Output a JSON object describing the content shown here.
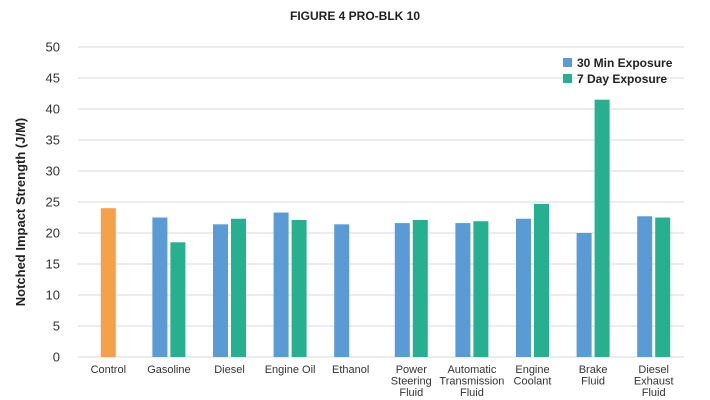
{
  "chart_data": {
    "type": "bar",
    "title": "FIGURE 4 PRO-BLK 10",
    "ylabel": "Notched Impact Strength (J/M)",
    "xlabel": "",
    "ylim": [
      0,
      50
    ],
    "yticks": [
      "0",
      "5",
      "10",
      "15",
      "20",
      "25",
      "30",
      "35",
      "40",
      "45",
      "50"
    ],
    "grid": true,
    "legend_position": "top-right",
    "categories": [
      [
        "Control"
      ],
      [
        "Gasoline"
      ],
      [
        "Diesel"
      ],
      [
        "Engine Oil"
      ],
      [
        "Ethanol"
      ],
      [
        "Power",
        "Steering",
        "Fluid"
      ],
      [
        "Automatic",
        "Transmission",
        "Fluid"
      ],
      [
        "Engine",
        "Coolant"
      ],
      [
        "Brake",
        "Fluid"
      ],
      [
        "Diesel",
        "Exhaust",
        "Fluid"
      ]
    ],
    "control": {
      "value": 24.0,
      "color": "#F5A04A"
    },
    "series": [
      {
        "name": "30 Min Exposure",
        "color": "#5B9BD5",
        "values": [
          null,
          22.5,
          21.4,
          23.3,
          21.4,
          21.6,
          21.6,
          22.3,
          20.0,
          22.7
        ]
      },
      {
        "name": "7 Day Exposure",
        "color": "#26B08F",
        "values": [
          null,
          18.5,
          22.3,
          22.1,
          null,
          22.1,
          21.9,
          24.7,
          41.5,
          22.5
        ]
      }
    ]
  }
}
